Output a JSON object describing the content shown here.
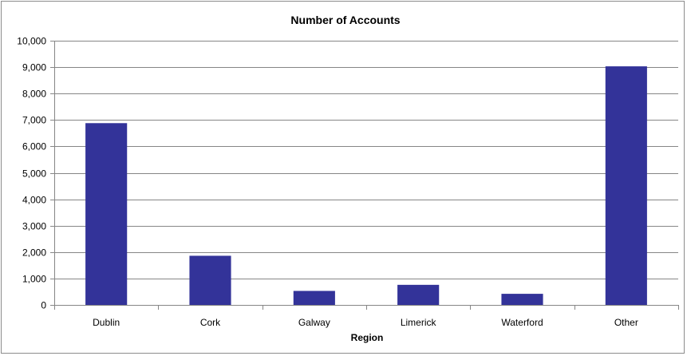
{
  "chart_data": {
    "type": "bar",
    "title": "Number of Accounts",
    "xlabel": "Region",
    "ylabel": "",
    "categories": [
      "Dublin",
      "Cork",
      "Galway",
      "Limerick",
      "Waterford",
      "Other"
    ],
    "values": [
      6880,
      1860,
      530,
      760,
      420,
      9030
    ],
    "ylim": [
      0,
      10000
    ],
    "yticks": [
      "0",
      "1,000",
      "2,000",
      "3,000",
      "4,000",
      "5,000",
      "6,000",
      "7,000",
      "8,000",
      "9,000",
      "10,000"
    ],
    "ytick_values": [
      0,
      1000,
      2000,
      3000,
      4000,
      5000,
      6000,
      7000,
      8000,
      9000,
      10000
    ],
    "grid": true,
    "legend": "none",
    "bar_color": "#333399",
    "grid_color": "#868686",
    "axis_color": "#868686"
  }
}
